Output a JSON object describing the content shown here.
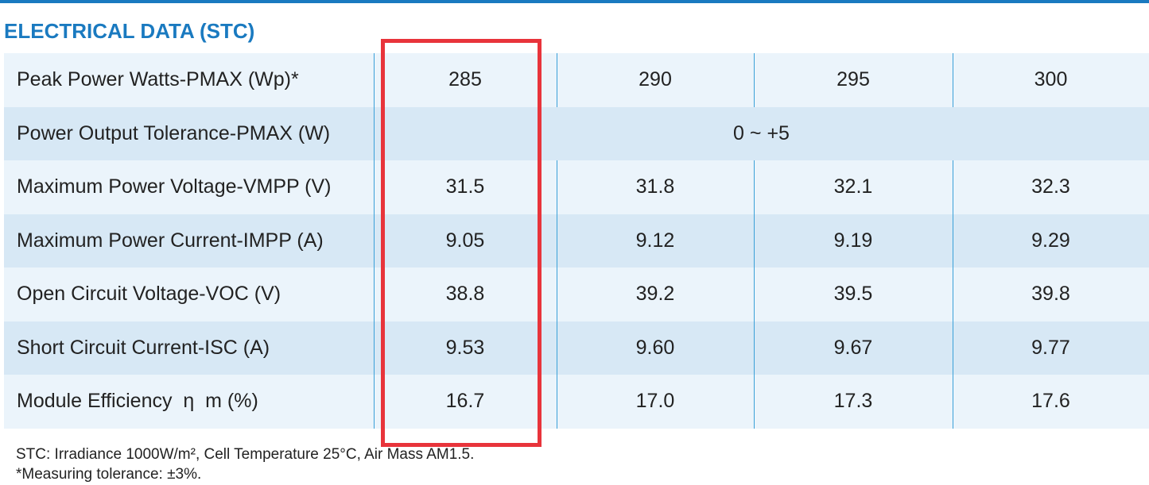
{
  "header": {
    "title": "ELECTRICAL DATA (STC)"
  },
  "table": {
    "rows": [
      {
        "label": "Peak Power Watts-PMAX (Wp)*",
        "values": [
          "285",
          "290",
          "295",
          "300"
        ]
      },
      {
        "label": "Power Output Tolerance-PMAX (W)",
        "values": [
          "0 ~ +5"
        ]
      },
      {
        "label": "Maximum Power Voltage-VMPP (V)",
        "values": [
          "31.5",
          "31.8",
          "32.1",
          "32.3"
        ]
      },
      {
        "label": "Maximum Power Current-IMPP (A)",
        "values": [
          "9.05",
          "9.12",
          "9.19",
          "9.29"
        ]
      },
      {
        "label": "Open Circuit Voltage-VOC (V)",
        "values": [
          "38.8",
          "39.2",
          "39.5",
          "39.8"
        ]
      },
      {
        "label": "Short Circuit Current-ISC (A)",
        "values": [
          "9.53",
          "9.60",
          "9.67",
          "9.77"
        ]
      },
      {
        "label": "Module Efficiency  η  m (%)",
        "values": [
          "16.7",
          "17.0",
          "17.3",
          "17.6"
        ]
      }
    ]
  },
  "footnotes": [
    "STC: Irradiance 1000W/m², Cell Temperature 25°C, Air Mass AM1.5.",
    "*Measuring tolerance: ±3%."
  ]
}
